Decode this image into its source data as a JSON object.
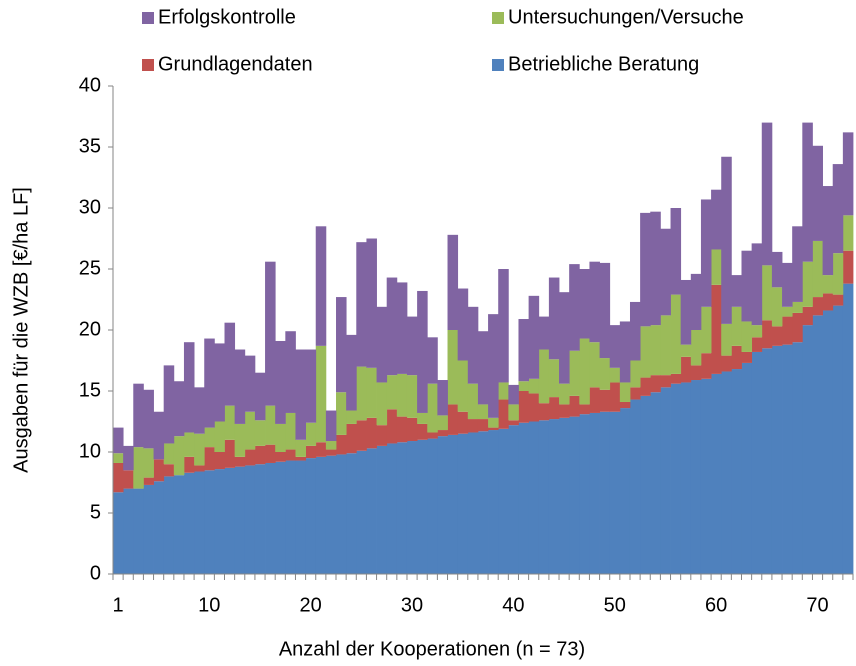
{
  "chart_data": {
    "type": "stacked_bar",
    "x_label": "Anzahl der Kooperationen (n = 73)",
    "y_label": "Ausgaben für die WZB [€/ha LF]",
    "categories": [
      "1",
      null,
      null,
      null,
      null,
      null,
      null,
      null,
      null,
      "10",
      null,
      null,
      null,
      null,
      null,
      null,
      null,
      null,
      null,
      "20",
      null,
      null,
      null,
      null,
      null,
      null,
      null,
      null,
      null,
      "30",
      null,
      null,
      null,
      null,
      null,
      null,
      null,
      null,
      null,
      "40",
      null,
      null,
      null,
      null,
      null,
      null,
      null,
      null,
      null,
      "50",
      null,
      null,
      null,
      null,
      null,
      null,
      null,
      null,
      null,
      "60",
      null,
      null,
      null,
      null,
      null,
      null,
      null,
      null,
      null,
      "70",
      null,
      null,
      null
    ],
    "ylim": [
      0,
      40
    ],
    "yticks": [
      0,
      5,
      10,
      15,
      20,
      25,
      30,
      35,
      40
    ],
    "series": [
      {
        "name": "Betriebliche Beratung",
        "color": "#4f81bd",
        "values": [
          6.7,
          7.0,
          7.0,
          7.3,
          7.6,
          8.0,
          8.1,
          8.3,
          8.4,
          8.5,
          8.6,
          8.7,
          8.8,
          8.9,
          9.0,
          9.1,
          9.2,
          9.3,
          9.3,
          9.5,
          9.6,
          9.7,
          9.8,
          9.9,
          10.1,
          10.3,
          10.5,
          10.7,
          10.8,
          10.9,
          11.0,
          11.1,
          11.3,
          11.4,
          11.5,
          11.6,
          11.7,
          11.8,
          11.9,
          12.2,
          12.4,
          12.5,
          12.6,
          12.7,
          12.8,
          12.9,
          13.1,
          13.2,
          13.3,
          13.3,
          13.6,
          14.3,
          14.6,
          14.9,
          15.3,
          15.6,
          15.7,
          15.9,
          16.0,
          16.4,
          16.6,
          16.8,
          17.3,
          18.2,
          18.5,
          18.7,
          18.8,
          19.0,
          20.4,
          21.2,
          21.6,
          22.0,
          23.8
        ]
      },
      {
        "name": "Grundlagendaten",
        "color": "#c0504d",
        "values": [
          2.4,
          1.5,
          0.0,
          0.6,
          1.8,
          1.0,
          0.0,
          1.3,
          0.5,
          1.9,
          1.4,
          2.3,
          0.8,
          1.3,
          1.5,
          1.5,
          0.8,
          0.9,
          0.3,
          1.0,
          1.2,
          0.5,
          1.6,
          2.4,
          2.5,
          2.5,
          1.7,
          2.8,
          2.1,
          1.9,
          1.3,
          0.5,
          0.5,
          2.5,
          1.8,
          1.1,
          1.0,
          0.2,
          2.4,
          0.4,
          2.6,
          2.3,
          1.4,
          1.8,
          1.1,
          1.7,
          0.8,
          2.1,
          1.8,
          2.4,
          0.5,
          1.0,
          1.5,
          1.4,
          1.0,
          0.8,
          2.1,
          1.2,
          2.1,
          7.3,
          1.3,
          1.9,
          0.9,
          1.2,
          2.3,
          1.6,
          2.3,
          2.4,
          1.5,
          1.5,
          1.4,
          0.9,
          2.7
        ]
      },
      {
        "name": "Untersuchungen/Versuche",
        "color": "#9bbb59",
        "values": [
          0.8,
          0.0,
          3.4,
          2.4,
          0.0,
          1.7,
          3.2,
          2.0,
          2.6,
          1.6,
          2.5,
          2.8,
          2.7,
          3.1,
          2.1,
          3.2,
          2.3,
          3.0,
          1.4,
          1.9,
          7.9,
          0.7,
          3.5,
          1.1,
          4.4,
          4.1,
          3.5,
          2.8,
          3.5,
          3.5,
          0.9,
          4.0,
          1.2,
          6.1,
          4.2,
          2.9,
          1.2,
          0.8,
          1.4,
          1.3,
          0.8,
          1.2,
          4.4,
          3.1,
          1.7,
          3.7,
          5.4,
          3.7,
          2.6,
          1.2,
          1.6,
          2.2,
          4.2,
          4.1,
          4.9,
          6.5,
          1.0,
          2.9,
          3.8,
          2.9,
          2.6,
          3.2,
          2.5,
          1.0,
          4.5,
          3.2,
          0.8,
          0.9,
          3.7,
          4.6,
          1.5,
          3.4,
          2.9
        ]
      },
      {
        "name": "Erfolgskontrolle",
        "color": "#8064a2",
        "values": [
          2.1,
          2.0,
          5.2,
          4.8,
          3.9,
          6.4,
          4.5,
          7.4,
          3.8,
          7.3,
          6.4,
          6.8,
          6.1,
          4.6,
          3.9,
          11.8,
          6.8,
          6.7,
          7.4,
          6.0,
          9.8,
          2.5,
          7.8,
          6.2,
          10.2,
          10.6,
          6.2,
          8.0,
          7.5,
          4.8,
          10.0,
          3.8,
          2.9,
          7.8,
          5.9,
          6.3,
          6.0,
          8.5,
          9.3,
          1.6,
          5.1,
          6.8,
          2.7,
          6.7,
          7.5,
          7.1,
          5.7,
          6.6,
          7.8,
          3.5,
          5.0,
          4.8,
          9.3,
          9.3,
          7.1,
          7.1,
          5.3,
          4.6,
          8.8,
          4.9,
          13.7,
          2.6,
          5.8,
          6.7,
          11.7,
          2.9,
          3.6,
          6.2,
          11.4,
          7.8,
          7.3,
          7.3,
          6.8
        ]
      }
    ]
  }
}
